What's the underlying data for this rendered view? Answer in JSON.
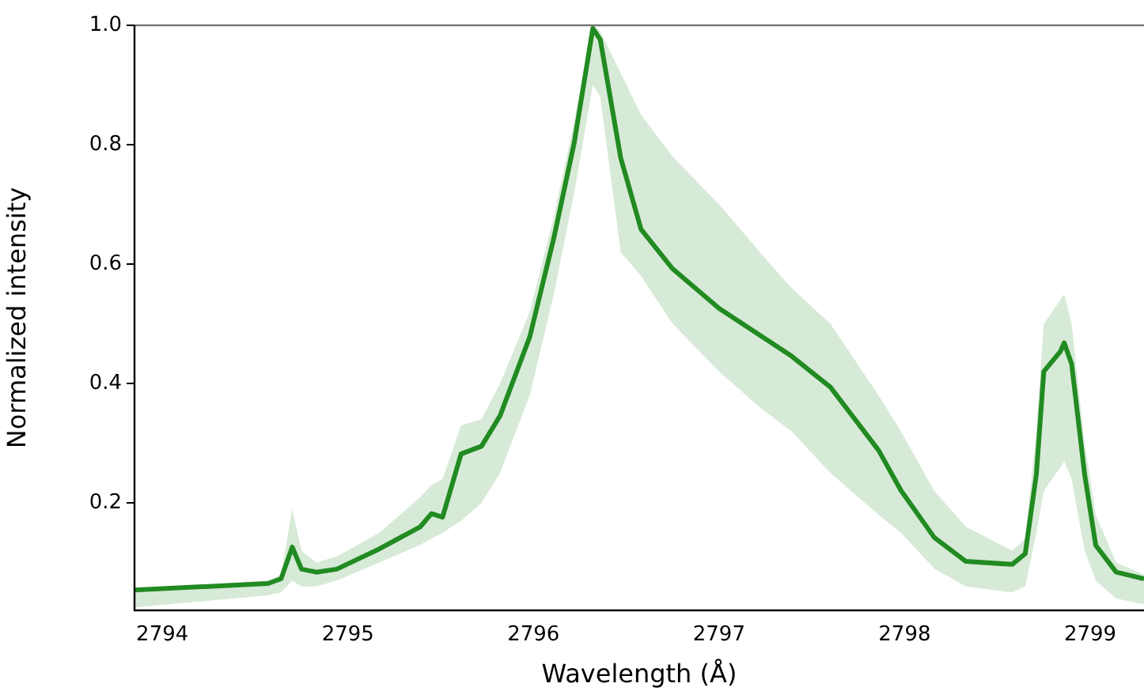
{
  "chart_data": {
    "type": "line",
    "xlabel": "Wavelength (Å)",
    "ylabel": "Normalized intensity",
    "marker": "none",
    "xlim": [
      2793.85,
      2799.29
    ],
    "ylim": [
      0.02,
      1.0
    ],
    "xticks": [
      2794,
      2795,
      2796,
      2797,
      2798,
      2799
    ],
    "yticks": [
      {
        "value": 0.2,
        "label": "0.2"
      },
      {
        "value": 0.4,
        "label": "0.4"
      },
      {
        "value": 0.6,
        "label": "0.6"
      },
      {
        "value": 0.8,
        "label": "0.8"
      },
      {
        "value": 1.0,
        "label": "1.0"
      }
    ],
    "series": [
      {
        "color": "#228b22",
        "x": [
          2793.85,
          2794.57,
          2794.64,
          2794.7,
          2794.75,
          2794.83,
          2794.94,
          2795.17,
          2795.39,
          2795.45,
          2795.51,
          2795.61,
          2795.72,
          2795.82,
          2795.98,
          2796.11,
          2796.22,
          2796.32,
          2796.36,
          2796.47,
          2796.58,
          2796.75,
          2797.0,
          2797.22,
          2797.39,
          2797.6,
          2797.86,
          2797.98,
          2798.16,
          2798.33,
          2798.58,
          2798.65,
          2798.71,
          2798.75,
          2798.84,
          2798.86,
          2798.9,
          2798.97,
          2799.03,
          2799.14,
          2799.29
        ],
        "values": [
          0.054,
          0.065,
          0.073,
          0.126,
          0.089,
          0.084,
          0.089,
          0.123,
          0.16,
          0.182,
          0.176,
          0.282,
          0.295,
          0.346,
          0.478,
          0.644,
          0.804,
          0.995,
          0.976,
          0.778,
          0.658,
          0.592,
          0.526,
          0.481,
          0.446,
          0.394,
          0.288,
          0.221,
          0.142,
          0.102,
          0.097,
          0.115,
          0.248,
          0.42,
          0.454,
          0.468,
          0.433,
          0.248,
          0.129,
          0.084,
          0.073
        ],
        "lower": [
          0.025,
          0.045,
          0.05,
          0.07,
          0.06,
          0.06,
          0.07,
          0.1,
          0.13,
          0.14,
          0.15,
          0.17,
          0.2,
          0.25,
          0.38,
          0.55,
          0.72,
          0.9,
          0.88,
          0.62,
          0.58,
          0.5,
          0.42,
          0.36,
          0.32,
          0.25,
          0.18,
          0.15,
          0.09,
          0.06,
          0.05,
          0.06,
          0.15,
          0.22,
          0.26,
          0.27,
          0.24,
          0.12,
          0.07,
          0.04,
          0.03
        ],
        "upper": [
          0.055,
          0.07,
          0.08,
          0.19,
          0.12,
          0.1,
          0.11,
          0.15,
          0.21,
          0.23,
          0.24,
          0.33,
          0.34,
          0.4,
          0.52,
          0.68,
          0.84,
          1.0,
          0.99,
          0.92,
          0.85,
          0.78,
          0.7,
          0.62,
          0.56,
          0.5,
          0.38,
          0.32,
          0.22,
          0.16,
          0.12,
          0.14,
          0.32,
          0.5,
          0.54,
          0.55,
          0.5,
          0.3,
          0.18,
          0.1,
          0.08
        ]
      }
    ]
  }
}
